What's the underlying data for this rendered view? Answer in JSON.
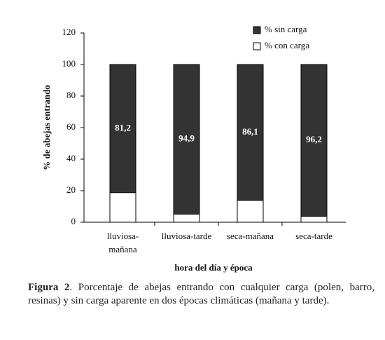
{
  "chart_data": {
    "type": "stacked_bar",
    "y_axis_label": "% de abejas entrando",
    "x_axis_label": "hora del día y época",
    "categories": [
      "lluviosa-mañana",
      "lluviosa-tarde",
      "seca-mañana",
      "seca-tarde"
    ],
    "series": [
      {
        "name": "% con carga",
        "color": "#ffffff",
        "values": [
          18.8,
          5.1,
          13.9,
          3.8
        ]
      },
      {
        "name": "% sin carga",
        "color": "#333333",
        "values": [
          81.2,
          94.9,
          86.1,
          96.2
        ],
        "value_labels": [
          "81,2",
          "94,9",
          "86,1",
          "96,2"
        ]
      }
    ],
    "ylim": [
      0,
      120
    ],
    "yticks": [
      0,
      20,
      40,
      60,
      80,
      100,
      120
    ]
  },
  "caption": {
    "label": "Figura 2",
    "text": ". Porcentaje de abejas entrando con cualquier carga (polen, barro, resinas) y sin carga aparente en dos épocas climáticas (mañana y tarde)."
  }
}
